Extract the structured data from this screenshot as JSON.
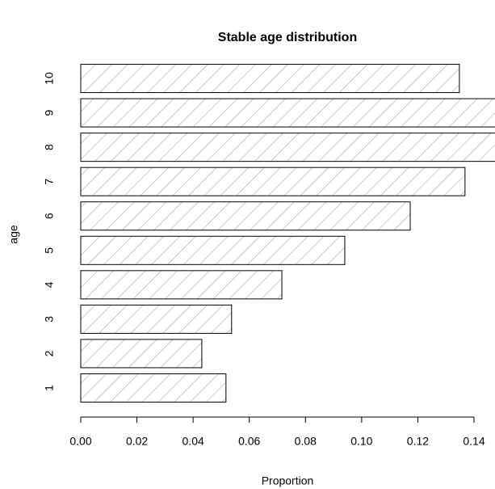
{
  "chart_data": {
    "type": "barh",
    "title": "Stable age distribution",
    "xlabel": "Proportion",
    "ylabel": "age",
    "categories": [
      "1",
      "2",
      "3",
      "4",
      "5",
      "6",
      "7",
      "8",
      "9",
      "10"
    ],
    "values": [
      0.0517,
      0.0431,
      0.0537,
      0.0716,
      0.094,
      0.1173,
      0.1368,
      0.15,
      0.148,
      0.1348
    ],
    "color": "#ffffff",
    "hatch": true,
    "xlim": [
      0,
      0.14
    ],
    "xticks": [
      {
        "value": 0,
        "label": "0.00"
      },
      {
        "value": 0.02,
        "label": "0.02"
      },
      {
        "value": 0.04,
        "label": "0.04"
      },
      {
        "value": 0.06,
        "label": "0.06"
      },
      {
        "value": 0.08,
        "label": "0.08"
      },
      {
        "value": 0.1,
        "label": "0.10"
      },
      {
        "value": 0.12,
        "label": "0.12"
      },
      {
        "value": 0.14,
        "label": "0.14"
      }
    ]
  }
}
